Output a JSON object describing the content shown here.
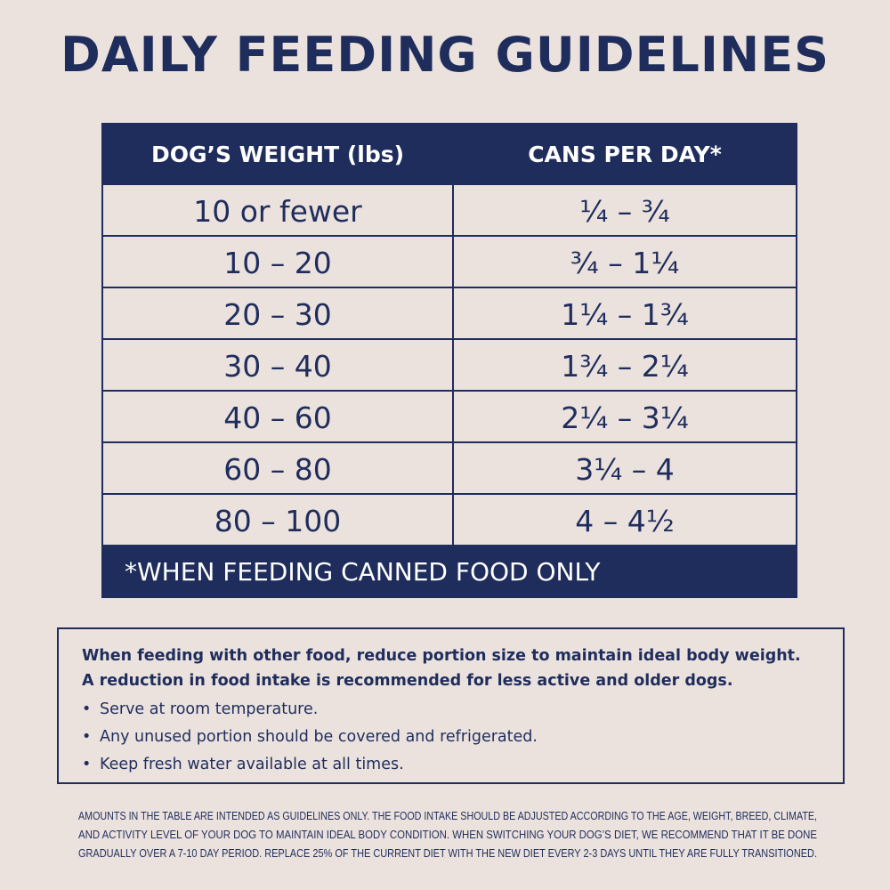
{
  "title": "DAILY FEEDING GUIDELINES",
  "table": {
    "headers": [
      "DOG’S WEIGHT (lbs)",
      "CANS PER DAY*"
    ],
    "rows": [
      [
        "10 or fewer",
        "¼ – ¾"
      ],
      [
        "10 – 20",
        "¾ – 1¼"
      ],
      [
        "20 – 30",
        "1¼ – 1¾"
      ],
      [
        "30 – 40",
        "1¾ – 2¼"
      ],
      [
        "40 – 60",
        "2¼ – 3¼"
      ],
      [
        "60 – 80",
        "3¼ – 4"
      ],
      [
        "80 – 100",
        "4 – 4½"
      ]
    ],
    "footnote": "*WHEN FEEDING CANNED FOOD ONLY"
  },
  "notes": {
    "intro": [
      "When feeding with other food, reduce portion size to maintain ideal body weight.",
      "A reduction in food intake is recommended for less active and older dogs."
    ],
    "bullets": [
      "Serve at room temperature.",
      "Any unused portion should be covered and refrigerated.",
      "Keep fresh water available at all times."
    ]
  },
  "disclaimer": [
    "AMOUNTS IN THE TABLE ARE INTENDED AS GUIDELINES ONLY. THE FOOD INTAKE SHOULD BE ADJUSTED ACCORDING TO THE AGE, WEIGHT, BREED, CLIMATE,",
    "AND ACTIVITY LEVEL OF YOUR DOG TO MAINTAIN IDEAL BODY CONDITION. WHEN SWITCHING YOUR DOG’S DIET, WE RECOMMEND THAT IT BE DONE",
    "GRADUALLY OVER A 7-10 DAY PERIOD. REPLACE 25% OF THE CURRENT DIET WITH THE NEW DIET EVERY 2-3 DAYS UNTIL THEY ARE FULLY TRANSITIONED."
  ]
}
